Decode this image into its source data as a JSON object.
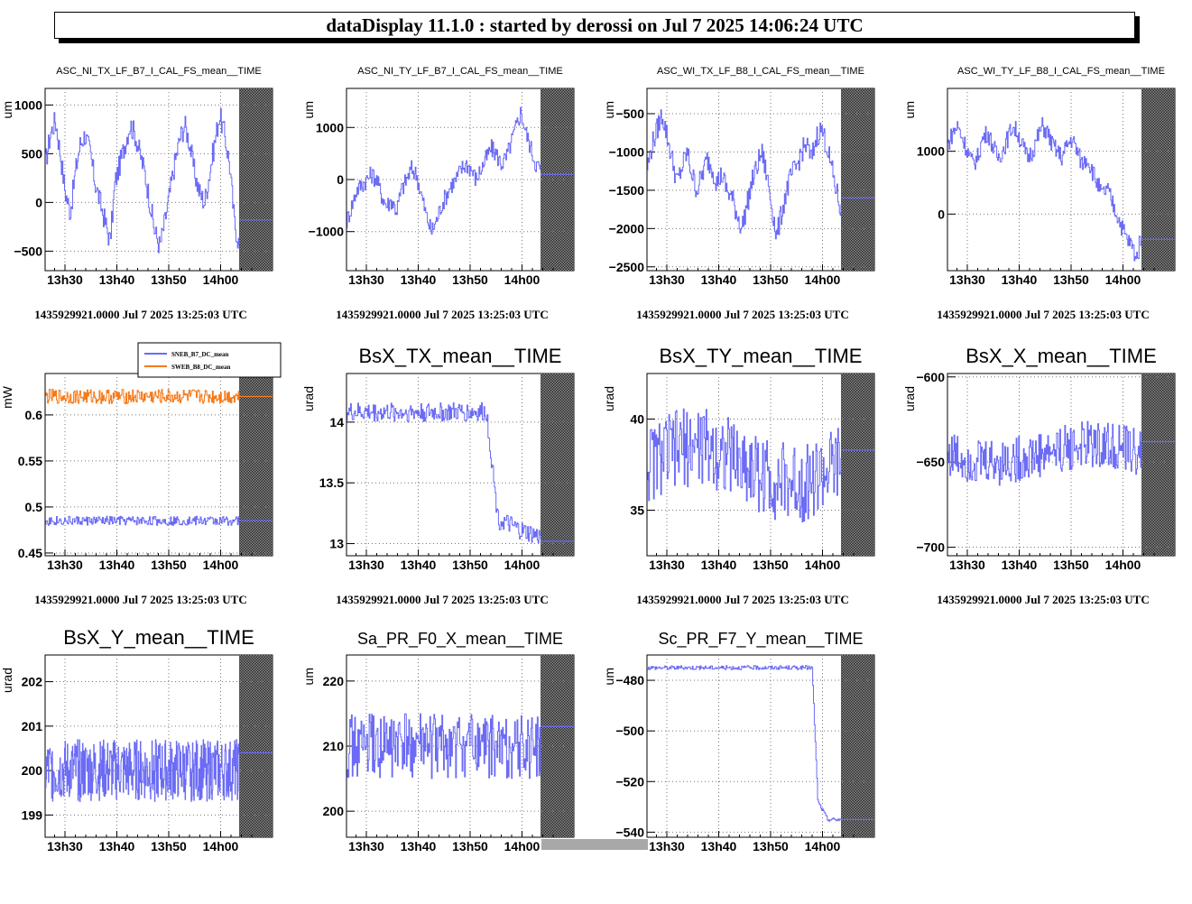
{
  "header": {
    "title": "dataDisplay 11.1.0 : started by derossi on Jul  7 2025 14:06:24 UTC"
  },
  "colors": {
    "trace": "#6b6bf5",
    "trace2": "#f57a1a",
    "hatch": "#555555"
  },
  "chart_data": [
    {
      "type": "line",
      "title": "ASC_NI_TX_LF_B7_I_CAL_FS_mean__TIME",
      "title_style": "small",
      "ylabel": "um",
      "ylim": [
        -700,
        1170
      ],
      "yticks": [
        -500,
        0,
        500,
        1000
      ],
      "ytick_labels": [
        "−500",
        "0",
        "500",
        "1000"
      ],
      "x_tick_labels": [
        "13h30",
        "13h40",
        "13h50",
        "14h00"
      ],
      "footer": "1435929921.0000 Jul 7 2025 13:25:03 UTC",
      "series": [
        {
          "kind": "walk",
          "values": [
            400,
            700,
            850,
            500,
            100,
            -100,
            300,
            600,
            700,
            500,
            200,
            0,
            -200,
            -400,
            200,
            400,
            600,
            800,
            700,
            500,
            300,
            0,
            -300,
            -450,
            -200,
            100,
            400,
            650,
            800,
            600,
            300,
            100,
            0,
            300,
            600,
            900,
            700,
            400,
            -200,
            -450
          ],
          "noise": 120,
          "color": "#6b6bf5"
        }
      ],
      "last_value": -180
    },
    {
      "type": "line",
      "title": "ASC_NI_TY_LF_B7_I_CAL_FS_mean__TIME",
      "title_style": "small",
      "ylabel": "um",
      "ylim": [
        -1750,
        1750
      ],
      "yticks": [
        -1000,
        0,
        1000
      ],
      "ytick_labels": [
        "−1000",
        "0",
        "1000"
      ],
      "x_tick_labels": [
        "13h30",
        "13h40",
        "13h50",
        "14h00"
      ],
      "footer": "1435929921.0000 Jul 7 2025 13:25:03 UTC",
      "series": [
        {
          "kind": "walk",
          "values": [
            -800,
            -500,
            -200,
            -100,
            0,
            100,
            0,
            -300,
            -500,
            -400,
            -600,
            -200,
            0,
            200,
            100,
            -300,
            -700,
            -1000,
            -800,
            -500,
            -300,
            -100,
            0,
            200,
            300,
            200,
            0,
            200,
            400,
            600,
            500,
            300,
            400,
            700,
            1000,
            1300,
            900,
            600,
            300,
            200
          ],
          "noise": 180,
          "color": "#6b6bf5"
        }
      ],
      "last_value": 100
    },
    {
      "type": "line",
      "title": "ASC_WI_TX_LF_B8_I_CAL_FS_mean__TIME",
      "title_style": "small",
      "ylabel": "um",
      "ylim": [
        -2550,
        -170
      ],
      "yticks": [
        -2500,
        -2000,
        -1500,
        -1000,
        -500
      ],
      "ytick_labels": [
        "−2500",
        "−2000",
        "−1500",
        "−1000",
        "−500"
      ],
      "x_tick_labels": [
        "13h30",
        "13h40",
        "13h50",
        "14h00"
      ],
      "footer": "1435929921.0000 Jul 7 2025 13:25:03 UTC",
      "series": [
        {
          "kind": "walk",
          "values": [
            -1200,
            -900,
            -700,
            -500,
            -800,
            -1100,
            -1400,
            -1200,
            -1000,
            -1300,
            -1500,
            -1300,
            -1100,
            -1200,
            -1400,
            -1300,
            -1500,
            -1600,
            -1800,
            -2000,
            -1700,
            -1400,
            -1200,
            -1000,
            -1300,
            -1700,
            -2100,
            -1800,
            -1500,
            -1300,
            -1200,
            -1000,
            -900,
            -1100,
            -800,
            -700,
            -900,
            -1200,
            -1500,
            -1800
          ],
          "noise": 150,
          "color": "#6b6bf5"
        }
      ],
      "last_value": -1600
    },
    {
      "type": "line",
      "title": "ASC_WI_TY_LF_B8_I_CAL_FS_mean__TIME",
      "title_style": "small",
      "ylabel": "um",
      "ylim": [
        -900,
        2000
      ],
      "yticks": [
        0,
        1000
      ],
      "ytick_labels": [
        "0",
        "1000"
      ],
      "x_tick_labels": [
        "13h30",
        "13h40",
        "13h50",
        "14h00"
      ],
      "footer": "1435929921.0000 Jul 7 2025 13:25:03 UTC",
      "series": [
        {
          "kind": "walk",
          "values": [
            1100,
            1300,
            1400,
            1200,
            1000,
            800,
            900,
            1200,
            1300,
            1100,
            900,
            1000,
            1200,
            1400,
            1300,
            1100,
            900,
            1000,
            1200,
            1400,
            1300,
            1100,
            1000,
            900,
            1100,
            1200,
            1000,
            800,
            900,
            700,
            500,
            300,
            400,
            200,
            0,
            -200,
            -400,
            -500,
            -700,
            -300
          ],
          "noise": 150,
          "color": "#6b6bf5"
        }
      ],
      "last_value": -400
    },
    {
      "type": "line",
      "title": "",
      "title_style": "none",
      "ylabel": "mW",
      "ylim": [
        0.447,
        0.645
      ],
      "yticks": [
        0.45,
        0.5,
        0.55,
        0.6
      ],
      "ytick_labels": [
        "0.45",
        "0.5",
        "0.55",
        "0.6"
      ],
      "x_tick_labels": [
        "13h30",
        "13h40",
        "13h50",
        "14h00"
      ],
      "footer": "1435929921.0000 Jul 7 2025 13:25:03 UTC",
      "legend": [
        "SNEB_B7_DC_mean",
        "SWEB_B8_DC_mean"
      ],
      "series": [
        {
          "kind": "noise",
          "center": 0.62,
          "noise": 0.008,
          "color": "#f57a1a",
          "name": "SWEB_B8_DC_mean"
        },
        {
          "kind": "noise",
          "center": 0.485,
          "noise": 0.005,
          "color": "#6b6bf5",
          "name": "SNEB_B7_DC_mean"
        }
      ],
      "last_value": 0.485,
      "last_value2": 0.62
    },
    {
      "type": "line",
      "title": "BsX_TX_mean__TIME",
      "title_style": "big",
      "ylabel": "urad",
      "ylim": [
        12.9,
        14.4
      ],
      "yticks": [
        13,
        13.5,
        14
      ],
      "ytick_labels": [
        "13",
        "13.5",
        "14"
      ],
      "x_tick_labels": [
        "13h30",
        "13h40",
        "13h50",
        "14h00"
      ],
      "footer": "1435929921.0000 Jul 7 2025 13:25:03 UTC",
      "series": [
        {
          "kind": "step",
          "levels": [
            [
              0,
              14.08
            ],
            [
              0.72,
              14.08
            ],
            [
              0.78,
              13.2
            ],
            [
              0.9,
              13.1
            ],
            [
              1.0,
              13.05
            ]
          ],
          "noise": 0.08,
          "color": "#6b6bf5"
        }
      ],
      "last_value": 13.02
    },
    {
      "type": "line",
      "title": "BsX_TY_mean__TIME",
      "title_style": "big",
      "ylabel": "urad",
      "ylim": [
        32.5,
        42.5
      ],
      "yticks": [
        35,
        40
      ],
      "ytick_labels": [
        "35",
        "40"
      ],
      "x_tick_labels": [
        "13h30",
        "13h40",
        "13h50",
        "14h00"
      ],
      "footer": "1435929921.0000 Jul 7 2025 13:25:03 UTC",
      "series": [
        {
          "kind": "noise",
          "center": 37.5,
          "drift": 1.0,
          "noise": 2.2,
          "color": "#6b6bf5"
        }
      ],
      "last_value": 38.3
    },
    {
      "type": "line",
      "title": "BsX_X_mean__TIME",
      "title_style": "big",
      "ylabel": "urad",
      "ylim": [
        -705,
        -598
      ],
      "yticks": [
        -700,
        -650,
        -600
      ],
      "ytick_labels": [
        "−700",
        "−650",
        "−600"
      ],
      "x_tick_labels": [
        "13h30",
        "13h40",
        "13h50",
        "14h00"
      ],
      "footer": "1435929921.0000 Jul 7 2025 13:25:03 UTC",
      "series": [
        {
          "kind": "noise",
          "center": -645,
          "drift": -5,
          "noise": 14,
          "color": "#6b6bf5"
        }
      ],
      "last_value": -638
    },
    {
      "type": "line",
      "title": "BsX_Y_mean__TIME",
      "title_style": "big",
      "ylabel": "urad",
      "ylim": [
        198.5,
        202.6
      ],
      "yticks": [
        199,
        200,
        201,
        202
      ],
      "ytick_labels": [
        "199",
        "200",
        "201",
        "202"
      ],
      "x_tick_labels": [
        "13h30",
        "13h40",
        "13h50",
        "14h00"
      ],
      "footer": "",
      "series": [
        {
          "kind": "noise",
          "center": 200,
          "noise": 0.7,
          "color": "#6b6bf5",
          "dense": true
        }
      ],
      "last_value": 200.4
    },
    {
      "type": "line",
      "title": "Sa_PR_F0_X_mean__TIME",
      "title_style": "mid",
      "ylabel": "um",
      "ylim": [
        196,
        224
      ],
      "yticks": [
        200,
        210,
        220
      ],
      "ytick_labels": [
        "200",
        "210",
        "220"
      ],
      "x_tick_labels": [
        "13h30",
        "13h40",
        "13h50",
        "14h00"
      ],
      "footer": "",
      "series": [
        {
          "kind": "noise",
          "center": 210,
          "noise": 5,
          "color": "#6b6bf5"
        }
      ],
      "last_value": 213
    },
    {
      "type": "line",
      "title": "Sc_PR_F7_Y_mean__TIME",
      "title_style": "mid",
      "ylabel": "um",
      "ylim": [
        -542,
        -470
      ],
      "yticks": [
        -540,
        -520,
        -500,
        -480
      ],
      "ytick_labels": [
        "−540",
        "−520",
        "−500",
        "−480"
      ],
      "x_tick_labels": [
        "13h30",
        "13h40",
        "13h50",
        "14h00"
      ],
      "footer": "",
      "series": [
        {
          "kind": "step",
          "levels": [
            [
              0,
              -475
            ],
            [
              0.85,
              -475
            ],
            [
              0.88,
              -528
            ],
            [
              0.93,
              -535
            ],
            [
              1.0,
              -535
            ]
          ],
          "noise": 0.8,
          "color": "#6b6bf5"
        }
      ],
      "last_value": -535
    }
  ]
}
